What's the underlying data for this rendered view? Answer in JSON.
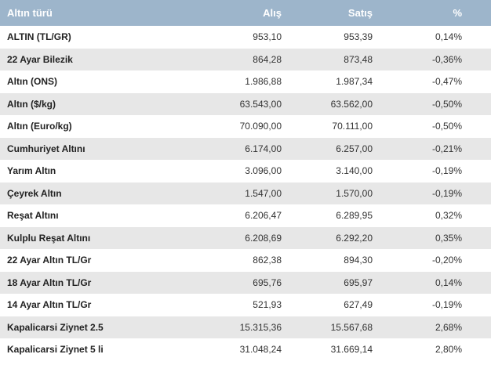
{
  "table": {
    "headers": {
      "name": "Altın türü",
      "buy": "Alış",
      "sell": "Satış",
      "pct": "%"
    },
    "rows": [
      {
        "name": "ALTIN (TL/GR)",
        "buy": "953,10",
        "sell": "953,39",
        "pct": "0,14%"
      },
      {
        "name": "22 Ayar Bilezik",
        "buy": "864,28",
        "sell": "873,48",
        "pct": "-0,36%"
      },
      {
        "name": "Altın (ONS)",
        "buy": "1.986,88",
        "sell": "1.987,34",
        "pct": "-0,47%"
      },
      {
        "name": "Altın ($/kg)",
        "buy": "63.543,00",
        "sell": "63.562,00",
        "pct": "-0,50%"
      },
      {
        "name": "Altın (Euro/kg)",
        "buy": "70.090,00",
        "sell": "70.111,00",
        "pct": "-0,50%"
      },
      {
        "name": "Cumhuriyet Altını",
        "buy": "6.174,00",
        "sell": "6.257,00",
        "pct": "-0,21%"
      },
      {
        "name": "Yarım Altın",
        "buy": "3.096,00",
        "sell": "3.140,00",
        "pct": "-0,19%"
      },
      {
        "name": "Çeyrek Altın",
        "buy": "1.547,00",
        "sell": "1.570,00",
        "pct": "-0,19%"
      },
      {
        "name": "Reşat Altını",
        "buy": "6.206,47",
        "sell": "6.289,95",
        "pct": "0,32%"
      },
      {
        "name": "Kulplu Reşat Altını",
        "buy": "6.208,69",
        "sell": "6.292,20",
        "pct": "0,35%"
      },
      {
        "name": "22 Ayar Altın TL/Gr",
        "buy": "862,38",
        "sell": "894,30",
        "pct": "-0,20%"
      },
      {
        "name": "18 Ayar Altın TL/Gr",
        "buy": "695,76",
        "sell": "695,97",
        "pct": "0,14%"
      },
      {
        "name": "14 Ayar Altın TL/Gr",
        "buy": "521,93",
        "sell": "627,49",
        "pct": "-0,19%"
      },
      {
        "name": "Kapalicarsi Ziynet 2.5",
        "buy": "15.315,36",
        "sell": "15.567,68",
        "pct": "2,68%"
      },
      {
        "name": "Kapalicarsi Ziynet 5 li",
        "buy": "31.048,24",
        "sell": "31.669,14",
        "pct": "2,80%"
      }
    ]
  },
  "colors": {
    "header_bg": "#9db5cb",
    "row_alt_bg": "#e7e7e7"
  }
}
